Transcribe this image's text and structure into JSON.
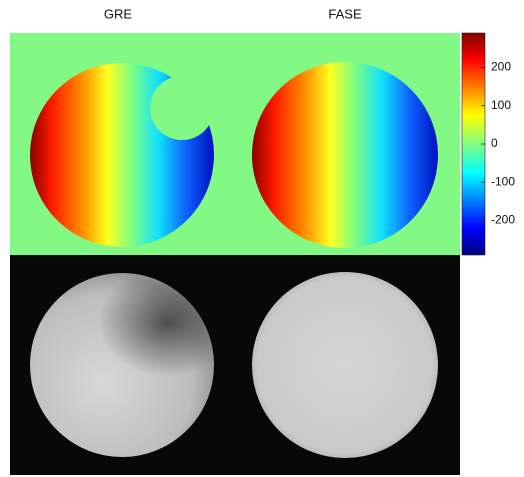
{
  "panels": [
    {
      "label": "GRE"
    },
    {
      "label": "FASE"
    }
  ],
  "colorbar": {
    "lim": [
      -290,
      290
    ],
    "ticks": [
      200,
      100,
      0,
      -100,
      -200
    ]
  }
}
